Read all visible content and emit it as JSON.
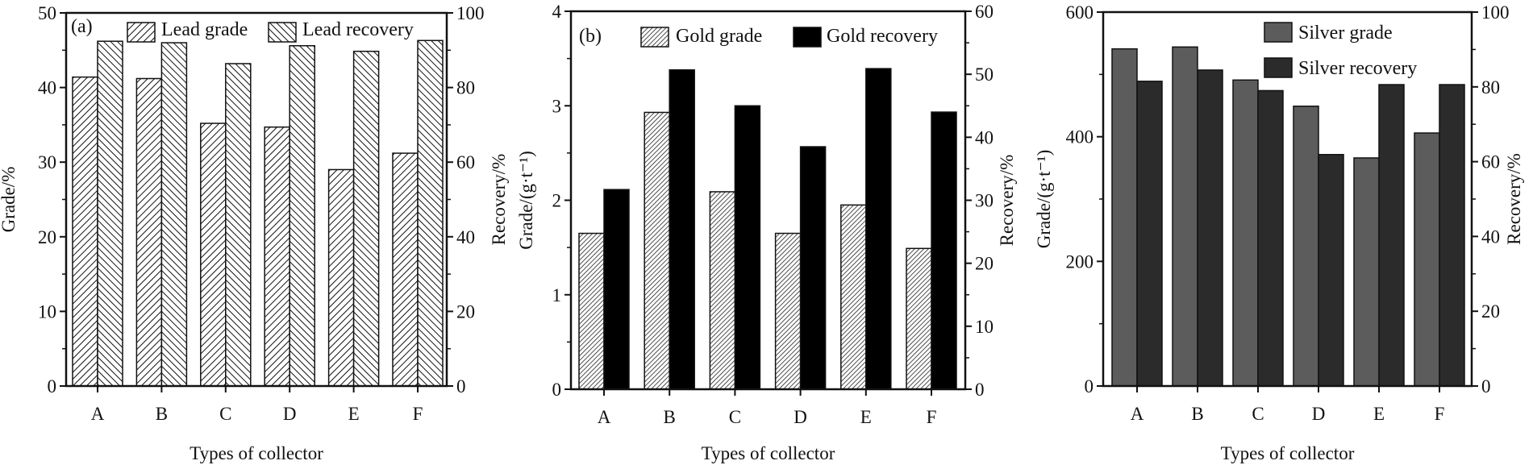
{
  "chart_data": [
    {
      "type": "bar",
      "panel_label": "(a)",
      "categories": [
        "A",
        "B",
        "C",
        "D",
        "E",
        "F"
      ],
      "xlabel": "Types of collector",
      "ylabel": "Grade/%",
      "y2label": "Recovery/%",
      "ylim": [
        0,
        50
      ],
      "y2lim": [
        0,
        100
      ],
      "yticks": [
        0,
        10,
        20,
        30,
        40,
        50
      ],
      "y2ticks": [
        0,
        20,
        40,
        60,
        80,
        100
      ],
      "legend_position": "top",
      "series": [
        {
          "name": "Lead grade",
          "axis": "left",
          "values": [
            41.4,
            41.2,
            35.2,
            34.7,
            29.0,
            31.2
          ],
          "style": "hatch-forward"
        },
        {
          "name": "Lead recovery",
          "axis": "right",
          "values": [
            92.4,
            92.0,
            86.4,
            91.2,
            89.7,
            92.6
          ],
          "style": "hatch-back"
        }
      ]
    },
    {
      "type": "bar",
      "panel_label": "(b)",
      "categories": [
        "A",
        "B",
        "C",
        "D",
        "E",
        "F"
      ],
      "xlabel": "Types of collector",
      "ylabel": "Grade/(g·t⁻¹)",
      "y2label": "Recovery/%",
      "ylim": [
        0,
        4
      ],
      "y2lim": [
        0,
        60
      ],
      "yticks": [
        0,
        1,
        2,
        3,
        4
      ],
      "y2ticks": [
        0,
        10,
        20,
        30,
        40,
        50,
        60
      ],
      "legend_position": "top",
      "series": [
        {
          "name": "Gold grade",
          "axis": "left",
          "values": [
            1.65,
            2.93,
            2.09,
            1.65,
            1.95,
            1.49
          ],
          "style": "hatch-fine"
        },
        {
          "name": "Gold recovery",
          "axis": "right",
          "values": [
            31.7,
            50.7,
            45.0,
            38.5,
            50.9,
            44.0
          ],
          "style": "solid",
          "color": "#000000"
        }
      ]
    },
    {
      "type": "bar",
      "panel_label": "",
      "categories": [
        "A",
        "B",
        "C",
        "D",
        "E",
        "F"
      ],
      "xlabel": "Types of collector",
      "ylabel": "Grade/(g·t⁻¹)",
      "y2label": "Recovery/%",
      "ylim": [
        0,
        600
      ],
      "y2lim": [
        0,
        100
      ],
      "yticks": [
        0,
        200,
        400,
        600
      ],
      "y2ticks": [
        0,
        20,
        40,
        60,
        80,
        100
      ],
      "legend_position": "top-right",
      "series": [
        {
          "name": "Silver grade",
          "axis": "left",
          "values": [
            541,
            544,
            491,
            449,
            366,
            406
          ],
          "style": "solid",
          "color": "#5c5c5c"
        },
        {
          "name": "Silver recovery",
          "axis": "right",
          "values": [
            81.5,
            84.5,
            79.0,
            61.9,
            80.6,
            80.6
          ],
          "style": "solid",
          "color": "#2b2b2b"
        }
      ]
    }
  ]
}
